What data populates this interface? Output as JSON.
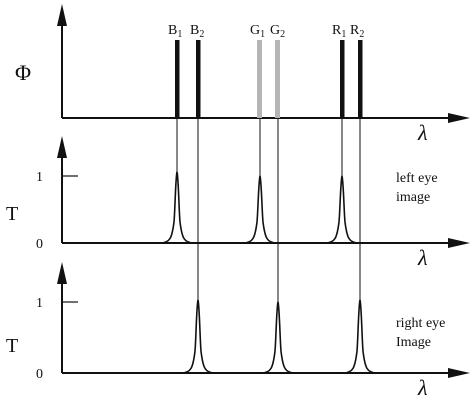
{
  "colors": {
    "ink": "#111111",
    "background": "#ffffff",
    "blue_line": "#111111",
    "green_line": "#b5b5b5",
    "red_line": "#111111"
  },
  "top_panel": {
    "y_label": "Φ",
    "x_label": "λ",
    "line_labels": {
      "B1": {
        "letter": "B",
        "index": "1"
      },
      "B2": {
        "letter": "B",
        "index": "2"
      },
      "G1": {
        "letter": "G",
        "index": "1"
      },
      "G2": {
        "letter": "G",
        "index": "2"
      },
      "R1": {
        "letter": "R",
        "index": "1"
      },
      "R2": {
        "letter": "R",
        "index": "2"
      }
    }
  },
  "left_panel": {
    "y_label": "T",
    "x_label": "λ",
    "tick_one": "1",
    "tick_zero": "0",
    "caption_line1": "left eye",
    "caption_line2": "image",
    "passband_lines": [
      "B1",
      "G1",
      "R1"
    ]
  },
  "right_panel": {
    "y_label": "T",
    "x_label": "λ",
    "tick_one": "1",
    "tick_zero": "0",
    "caption_line1": "right eye",
    "caption_line2": "Image",
    "passband_lines": [
      "B2",
      "G2",
      "R2"
    ]
  }
}
